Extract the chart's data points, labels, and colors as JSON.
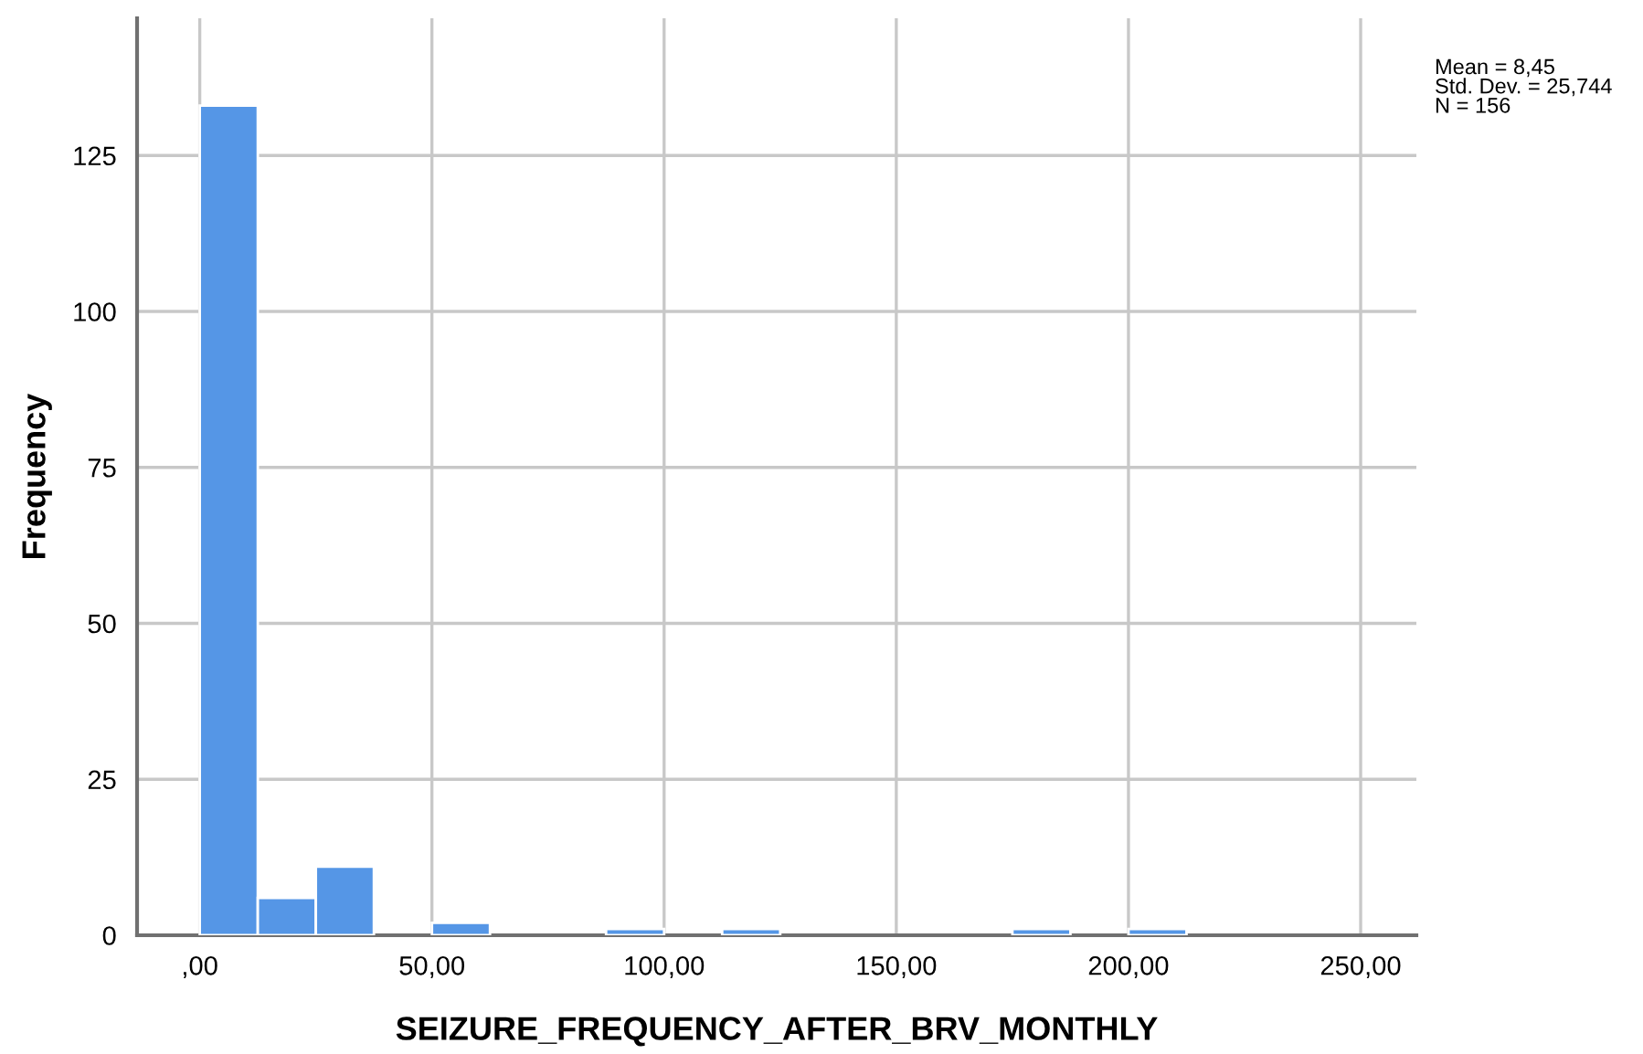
{
  "chart_data": {
    "type": "histogram",
    "xlabel": "SEIZURE_FREQUENCY_AFTER_BRV_MONTHLY",
    "ylabel": "Frequency",
    "bins": [
      0,
      12.5,
      25,
      37.5,
      50,
      62.5,
      75,
      87.5,
      100,
      112.5,
      125,
      137.5,
      150,
      162.5,
      175,
      187.5,
      200,
      212.5
    ],
    "values": [
      133,
      6,
      11,
      0,
      2,
      0,
      0,
      1,
      0,
      1,
      0,
      0,
      0,
      0,
      1,
      0,
      1
    ],
    "color": "#5596e6",
    "xlim": [
      -13.5,
      262
    ],
    "xticks": [
      {
        "value": 0,
        "label": ",00"
      },
      {
        "value": 50,
        "label": "50,00"
      },
      {
        "value": 100,
        "label": "100,00"
      },
      {
        "value": 150,
        "label": "150,00"
      },
      {
        "value": 200,
        "label": "200,00"
      },
      {
        "value": 250,
        "label": "250,00"
      }
    ],
    "ylim": [
      0,
      147
    ],
    "yticks": [
      0,
      25,
      50,
      75,
      100,
      125
    ],
    "grid": true,
    "annotations": [
      "Mean = 8,45\nStd. Dev. = 25,744\nN = 156"
    ]
  }
}
